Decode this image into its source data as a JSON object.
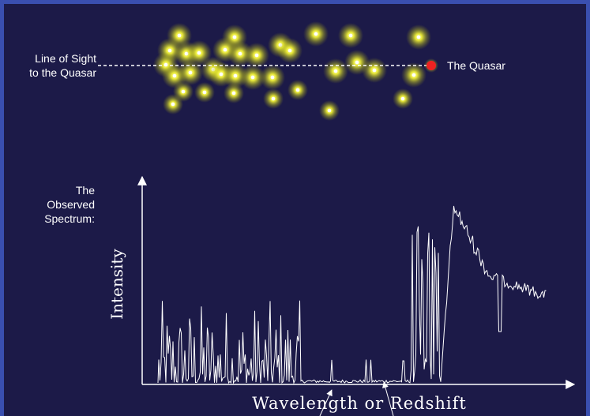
{
  "labels": {
    "line_of_sight": [
      "Line of Sight",
      "to the Quasar"
    ],
    "quasar": "The Quasar",
    "spectrum_title": [
      "The",
      "Observed",
      "Spectrum:"
    ],
    "y_axis": "Intensity",
    "x_axis": "Wavelength or Redshift"
  }
}
